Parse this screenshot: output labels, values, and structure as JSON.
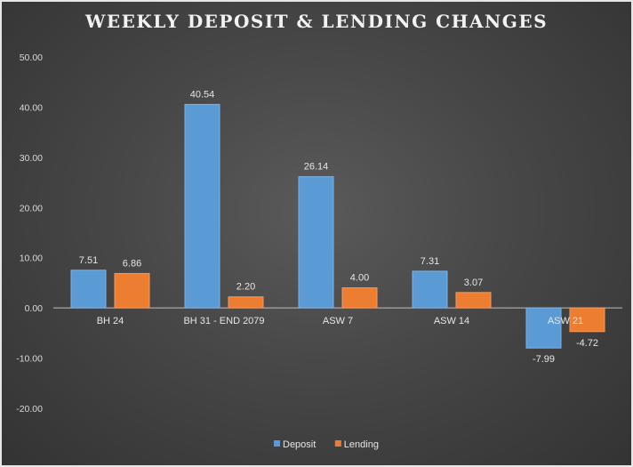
{
  "chart_data": {
    "type": "bar",
    "title": "WEEKLY DEPOSIT & LENDING CHANGES",
    "categories": [
      "BH 24",
      "BH 31 - END 2079",
      "ASW 7",
      "ASW 14",
      "ASW 21"
    ],
    "series": [
      {
        "name": "Deposit",
        "values": [
          7.51,
          40.54,
          26.14,
          7.31,
          -7.99
        ],
        "labels": [
          "7.51",
          "40.54",
          "26.14",
          "7.31",
          "-7.99"
        ],
        "color": "#5b9bd5"
      },
      {
        "name": "Lending",
        "values": [
          6.86,
          2.2,
          4.0,
          3.07,
          -4.72
        ],
        "labels": [
          "6.86",
          "2.20",
          "4.00",
          "3.07",
          "-4.72"
        ],
        "color": "#ed7d31"
      }
    ],
    "ylim": [
      -20,
      50
    ],
    "yticks": [
      "50.00",
      "40.00",
      "30.00",
      "20.00",
      "10.00",
      "0.00",
      "-10.00",
      "-20.00"
    ],
    "ytick_values": [
      50,
      40,
      30,
      20,
      10,
      0,
      -10,
      -20
    ],
    "grid": false,
    "legend": "bottom"
  }
}
